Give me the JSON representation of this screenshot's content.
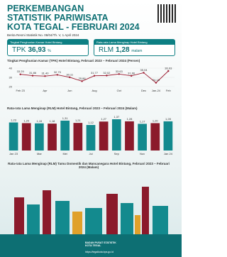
{
  "header": {
    "title_lines": [
      "PERKEMBANGAN",
      "STATISTIK PARIWISATA",
      "KOTA TEGAL - FEBRUARI 2024"
    ],
    "subtitle": "Berita Resmi Statistik No. 08/04/Th. V, 1 April 2024"
  },
  "highlights": [
    {
      "caption": "Tingkat Penghunian Kamar Hotel Bintang",
      "label": "TPK",
      "value": "36,93",
      "unit": "%"
    },
    {
      "caption": "Rata-rata Lama Menginap Hotel Bintang",
      "label": "RLM",
      "value": "1,28",
      "unit": "malam"
    }
  ],
  "chart_data": [
    {
      "type": "line",
      "title": "Tingkat Penghunian Kamar (TPK) Hotel Bintang, Februari 2023 – Februari 2024 (Persen)",
      "categories": [
        "Feb 23",
        null,
        "Apr",
        null,
        "Jun",
        null,
        "Aug",
        null,
        "Oct",
        null,
        "Dec",
        "Jan-24",
        "Feb"
      ],
      "values": [
        33.29,
        31.86,
        31.4,
        32.75,
        30.11,
        25.86,
        31.77,
        32.02,
        33.63,
        31.66,
        35.04,
        24.16,
        36.93
      ],
      "value_labels": [
        "33.29",
        "31.86",
        "31.40",
        "32.75",
        "30.11",
        "25.86",
        "31.77",
        "32.02",
        "33.63",
        "31.66",
        "35.04",
        "24.16",
        "36.93"
      ],
      "color": "#9b1b30",
      "ylim": [
        20,
        40
      ],
      "yticks": [
        20,
        30,
        40
      ]
    },
    {
      "type": "bar",
      "title": "Rata-rata Lama Menginap (RLM) Hotel Bintang, Februari 2023 – Februari 2024 (Malam)",
      "categories": [
        "Jan 23",
        null,
        "Mar",
        null,
        "Mei",
        null,
        "Jul",
        null,
        "Sep",
        null,
        "Nov",
        null,
        "Jan 24"
      ],
      "values": [
        1.23,
        1.2,
        1.19,
        1.18,
        1.31,
        1.21,
        1.12,
        1.27,
        1.37,
        1.28,
        1.17,
        1.2,
        1.28
      ],
      "value_labels": [
        "1,23",
        "1,20",
        "1,19",
        "1,18",
        "1,31",
        "1,21",
        "1,12",
        "1,27",
        "1,37",
        "1,28",
        "1,17",
        "1,20",
        "1,28"
      ],
      "color": "#8b1a2b"
    },
    {
      "type": "illustration",
      "title": "Rata-rata Lama Menginap (RLM) Tamu Domestik dan Mancanegara Hotel Bintang, Februari 2023 – Februari 2024 (Malam)"
    }
  ],
  "footer": {
    "org_lines": [
      "BADAN PUSAT STATISTIK",
      "KOTA TEGAL"
    ],
    "url": "https://tegalkota.bps.go.id"
  }
}
